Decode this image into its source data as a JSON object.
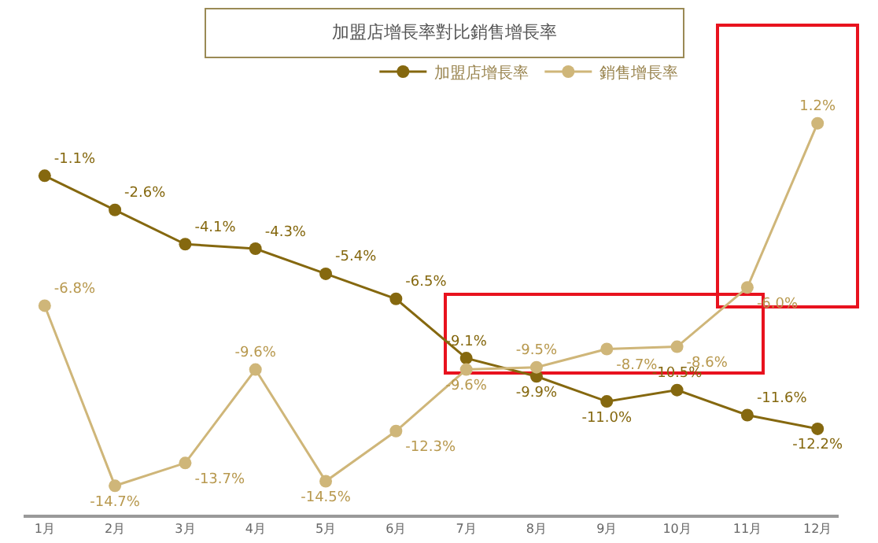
{
  "chart_data": {
    "type": "line",
    "title": "加盟店增長率對比銷售增長率",
    "categories": [
      "1月",
      "2月",
      "3月",
      "4月",
      "5月",
      "6月",
      "7月",
      "8月",
      "9月",
      "10月",
      "11月",
      "12月"
    ],
    "series": [
      {
        "name": "加盟店增長率",
        "color": "#85680f",
        "values": [
          -1.1,
          -2.6,
          -4.1,
          -4.3,
          -5.4,
          -6.5,
          -9.1,
          -9.9,
          -11.0,
          -10.5,
          -11.6,
          -12.2
        ],
        "value_labels": [
          "-1.1%",
          "-2.6%",
          "-4.1%",
          "-4.3%",
          "-5.4%",
          "-6.5%",
          "-9.1%",
          "-9.9%",
          "-11.0%",
          "-10.5%",
          "-11.6%",
          "-12.2%"
        ]
      },
      {
        "name": "銷售增長率",
        "color": "#cfb679",
        "values": [
          -6.8,
          -14.7,
          -13.7,
          -9.6,
          -14.5,
          -12.3,
          -9.6,
          -9.5,
          -8.7,
          -8.6,
          -6.0,
          1.2
        ],
        "value_labels": [
          "-6.8%",
          "-14.7%",
          "-13.7%",
          "-9.6%",
          "-14.5%",
          "-12.3%",
          "-9.6%",
          "-9.5%",
          "-8.7%",
          "-8.6%",
          "-6.0%",
          "1.2%"
        ]
      }
    ],
    "grid": false,
    "legend": "top",
    "marker": "circle",
    "line_style": "solid",
    "tick_labels": "x"
  }
}
